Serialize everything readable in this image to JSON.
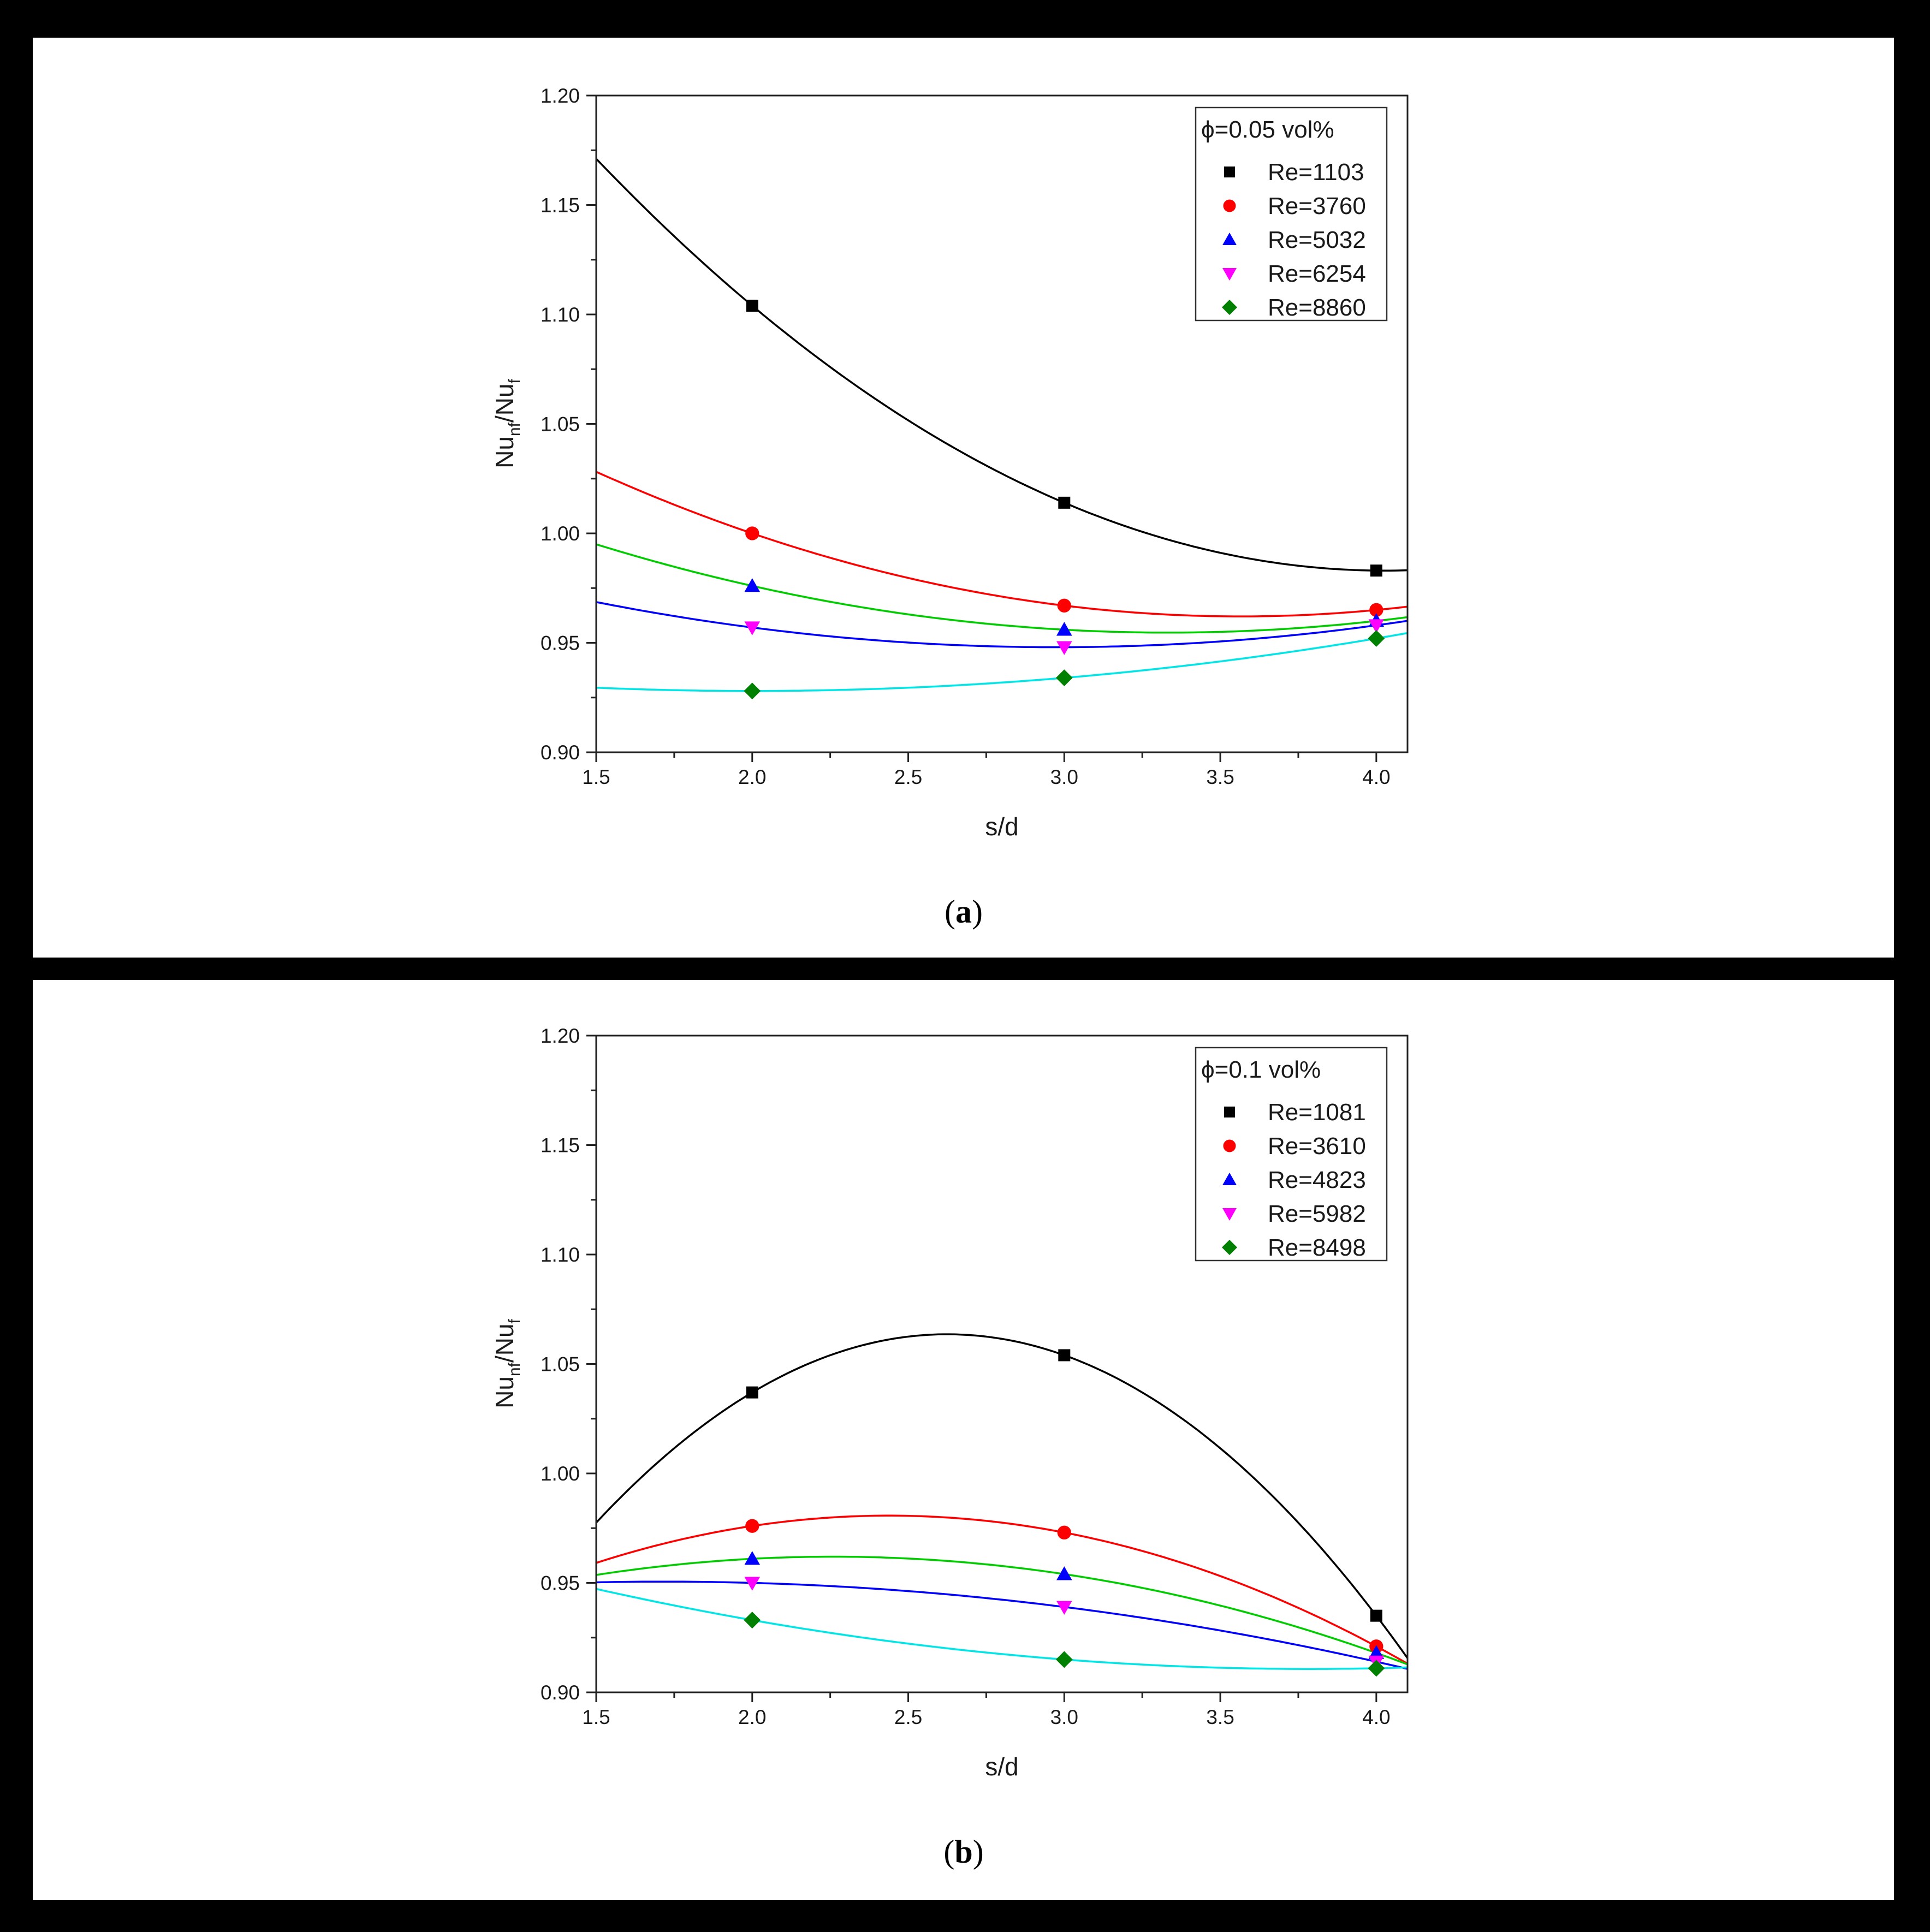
{
  "figure": {
    "panels": [
      {
        "label_open": "(",
        "label_letter": "a",
        "label_close": ")"
      },
      {
        "label_open": "(",
        "label_letter": "b",
        "label_close": ")"
      }
    ]
  },
  "chart_data": [
    {
      "type": "scatter",
      "panel": "a",
      "xlabel": "s/d",
      "ylabel_main": "Nu",
      "ylabel_sub1": "nf",
      "ylabel_mid": "/Nu",
      "ylabel_sub2": "f",
      "xlim": [
        1.5,
        4.1
      ],
      "ylim": [
        0.9,
        1.2
      ],
      "xticks": [
        1.5,
        2.0,
        2.5,
        3.0,
        3.5,
        4.0
      ],
      "xtick_labels": [
        "1.5",
        "2.0",
        "2.5",
        "3.0",
        "3.5",
        "4.0"
      ],
      "yticks": [
        0.9,
        0.95,
        1.0,
        1.05,
        1.1,
        1.15,
        1.2
      ],
      "ytick_labels": [
        "0.90",
        "0.95",
        "1.00",
        "1.05",
        "1.10",
        "1.15",
        "1.20"
      ],
      "legend_title": "ϕ=0.05 vol%",
      "legend_position": "top-right",
      "x": [
        2.0,
        3.0,
        4.0
      ],
      "series": [
        {
          "name": "Re=1103",
          "marker": "square",
          "color": "#000000",
          "fit_color": "#000000",
          "values": [
            1.104,
            1.014,
            0.983
          ]
        },
        {
          "name": "Re=3760",
          "marker": "circle",
          "color": "#ff0000",
          "fit_color": "#ff0000",
          "values": [
            1.0,
            0.967,
            0.965
          ]
        },
        {
          "name": "Re=5032",
          "marker": "triangle-up",
          "color": "#0000ff",
          "fit_color": "#00cc00",
          "values": [
            0.976,
            0.956,
            0.96
          ]
        },
        {
          "name": "Re=6254",
          "marker": "triangle-down",
          "color": "#ff00ff",
          "fit_color": "#0000ff",
          "values": [
            0.957,
            0.948,
            0.958
          ]
        },
        {
          "name": "Re=8860",
          "marker": "diamond",
          "color": "#008000",
          "fit_color": "#00e5e5",
          "values": [
            0.928,
            0.934,
            0.952
          ]
        }
      ]
    },
    {
      "type": "scatter",
      "panel": "b",
      "xlabel": "s/d",
      "ylabel_main": "Nu",
      "ylabel_sub1": "nf",
      "ylabel_mid": "/Nu",
      "ylabel_sub2": "f",
      "xlim": [
        1.5,
        4.1
      ],
      "ylim": [
        0.9,
        1.2
      ],
      "xticks": [
        1.5,
        2.0,
        2.5,
        3.0,
        3.5,
        4.0
      ],
      "xtick_labels": [
        "1.5",
        "2.0",
        "2.5",
        "3.0",
        "3.5",
        "4.0"
      ],
      "yticks": [
        0.9,
        0.95,
        1.0,
        1.05,
        1.1,
        1.15,
        1.2
      ],
      "ytick_labels": [
        "0.90",
        "0.95",
        "1.00",
        "1.05",
        "1.10",
        "1.15",
        "1.20"
      ],
      "legend_title": "ϕ=0.1 vol%",
      "legend_position": "top-right",
      "x": [
        2.0,
        3.0,
        4.0
      ],
      "series": [
        {
          "name": "Re=1081",
          "marker": "square",
          "color": "#000000",
          "fit_color": "#000000",
          "values": [
            1.037,
            1.054,
            0.935
          ]
        },
        {
          "name": "Re=3610",
          "marker": "circle",
          "color": "#ff0000",
          "fit_color": "#ff0000",
          "values": [
            0.976,
            0.973,
            0.921
          ]
        },
        {
          "name": "Re=4823",
          "marker": "triangle-up",
          "color": "#0000ff",
          "fit_color": "#00cc00",
          "values": [
            0.961,
            0.954,
            0.918
          ]
        },
        {
          "name": "Re=5982",
          "marker": "triangle-down",
          "color": "#ff00ff",
          "fit_color": "#0000ff",
          "values": [
            0.95,
            0.939,
            0.914
          ]
        },
        {
          "name": "Re=8498",
          "marker": "diamond",
          "color": "#008000",
          "fit_color": "#00e5e5",
          "values": [
            0.933,
            0.915,
            0.911
          ]
        }
      ]
    }
  ]
}
